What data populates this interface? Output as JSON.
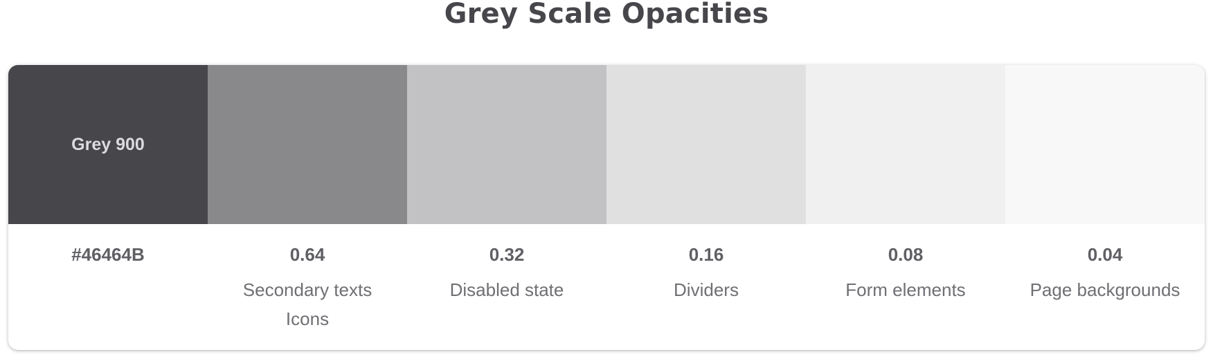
{
  "title": "Grey Scale Opacities",
  "swatches": [
    {
      "color": "#46464b",
      "label": "Grey 900",
      "value": "#46464B",
      "lines": []
    },
    {
      "color": "#89898c",
      "label": "",
      "value": "0.64",
      "lines": [
        "Secondary texts",
        "Icons"
      ]
    },
    {
      "color": "#c2c2c4",
      "label": "",
      "value": "0.32",
      "lines": [
        "Disabled state"
      ]
    },
    {
      "color": "#e0e0e1",
      "label": "",
      "value": "0.16",
      "lines": [
        "Dividers"
      ]
    },
    {
      "color": "#f0f0f0",
      "label": "",
      "value": "0.08",
      "lines": [
        "Form elements"
      ]
    },
    {
      "color": "#f8f8f8",
      "label": "",
      "value": "0.04",
      "lines": [
        "Page backgrounds"
      ]
    }
  ]
}
